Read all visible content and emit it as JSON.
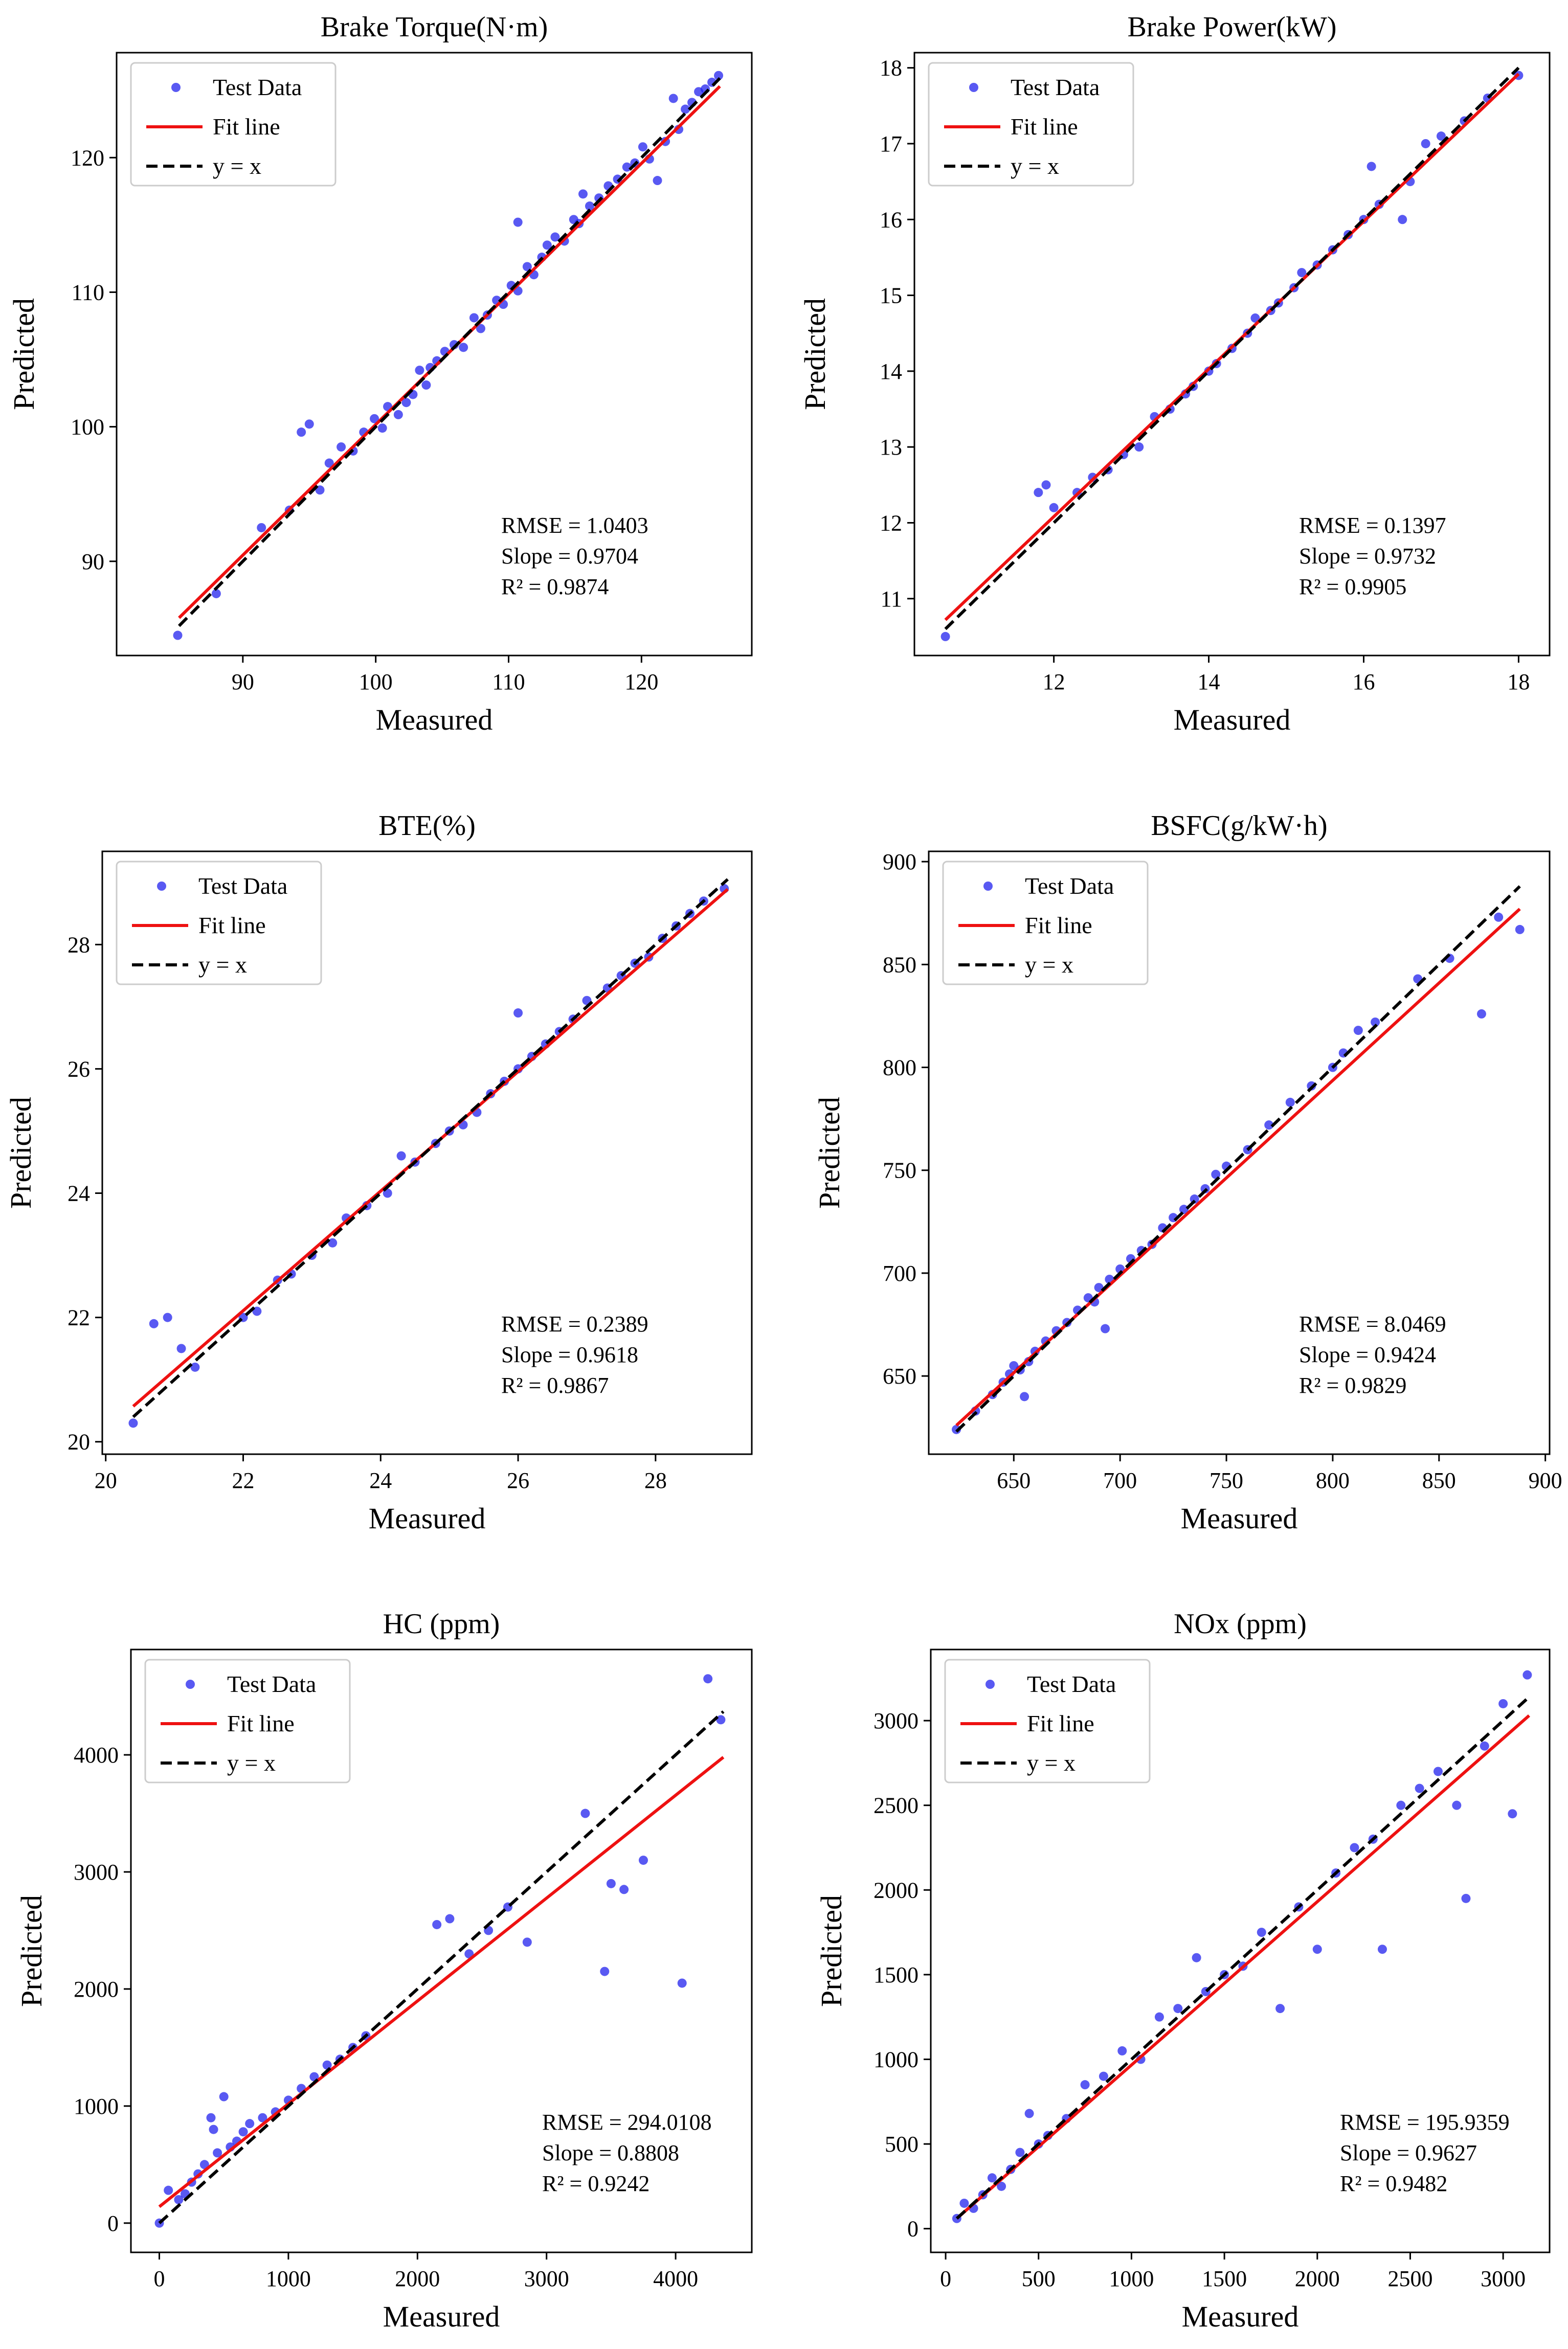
{
  "colors": {
    "test_data": "#2222ee",
    "fit_line": "#ee1111",
    "identity_line": "#000000",
    "axes": "#000000",
    "background": "#ffffff"
  },
  "legend_labels": {
    "test_data": "Test Data",
    "fit_line": "Fit line",
    "identity_line": "y = x"
  },
  "chart_data": [
    {
      "type": "scatter",
      "title": "Brake Torque(N·m)",
      "xlabel": "Measured",
      "ylabel": "Predicted",
      "xlim": [
        80.5,
        128.3
      ],
      "ylim": [
        83,
        127.8
      ],
      "xticks": [
        90,
        100,
        110,
        120
      ],
      "yticks": [
        90,
        100,
        110,
        120
      ],
      "fit_line": {
        "x": [
          85.2,
          125.9
        ],
        "y": [
          85.8,
          125.3
        ]
      },
      "identity_line": {
        "x": [
          85.2,
          125.9
        ],
        "y": [
          85.2,
          125.9
        ]
      },
      "stats": [
        "RMSE = 1.0403",
        "Slope = 0.9704",
        "R² = 0.9874"
      ],
      "legend": [
        "Test Data",
        "Fit line",
        "y = x"
      ],
      "points": [
        [
          85.1,
          84.5
        ],
        [
          88,
          87.6
        ],
        [
          91.4,
          92.5
        ],
        [
          93.5,
          93.8
        ],
        [
          94.4,
          99.6
        ],
        [
          95,
          100.2
        ],
        [
          95.8,
          95.3
        ],
        [
          96.5,
          97.3
        ],
        [
          97.4,
          98.5
        ],
        [
          98.3,
          98.2
        ],
        [
          99.1,
          99.6
        ],
        [
          99.9,
          100.6
        ],
        [
          100.5,
          99.9
        ],
        [
          100.9,
          101.5
        ],
        [
          101.7,
          100.9
        ],
        [
          102.3,
          101.8
        ],
        [
          102.8,
          102.4
        ],
        [
          103.3,
          104.2
        ],
        [
          103.8,
          103.1
        ],
        [
          104.1,
          104.4
        ],
        [
          104.6,
          104.9
        ],
        [
          105.2,
          105.6
        ],
        [
          105.9,
          106.1
        ],
        [
          106.6,
          105.9
        ],
        [
          107.4,
          108.1
        ],
        [
          107.9,
          107.3
        ],
        [
          108.4,
          108.3
        ],
        [
          109.1,
          109.4
        ],
        [
          109.6,
          109.1
        ],
        [
          110.2,
          110.5
        ],
        [
          110.7,
          115.2
        ],
        [
          110.7,
          110.1
        ],
        [
          111.4,
          111.9
        ],
        [
          111.9,
          111.3
        ],
        [
          112.5,
          112.6
        ],
        [
          112.9,
          113.5
        ],
        [
          113.5,
          114.1
        ],
        [
          114.2,
          113.8
        ],
        [
          114.9,
          115.4
        ],
        [
          115.6,
          117.3
        ],
        [
          115.3,
          115.1
        ],
        [
          116.1,
          116.4
        ],
        [
          116.8,
          117
        ],
        [
          117.5,
          117.9
        ],
        [
          118.2,
          118.4
        ],
        [
          118.9,
          119.3
        ],
        [
          119.5,
          119.6
        ],
        [
          120.1,
          120.8
        ],
        [
          120.6,
          119.9
        ],
        [
          121.2,
          118.3
        ],
        [
          121.8,
          121.2
        ],
        [
          122.4,
          124.4
        ],
        [
          122.8,
          122.1
        ],
        [
          123.3,
          123.6
        ],
        [
          123.8,
          124.1
        ],
        [
          124.3,
          124.9
        ],
        [
          124.8,
          125.1
        ],
        [
          125.3,
          125.6
        ],
        [
          125.8,
          126.1
        ]
      ]
    },
    {
      "type": "scatter",
      "title": "Brake Power(kW)",
      "xlabel": "Measured",
      "ylabel": "Predicted",
      "xlim": [
        10.2,
        18.4
      ],
      "ylim": [
        10.25,
        18.2
      ],
      "xticks": [
        12,
        14,
        16,
        18
      ],
      "yticks": [
        11,
        12,
        13,
        14,
        15,
        16,
        17,
        18
      ],
      "fit_line": {
        "x": [
          10.6,
          18
        ],
        "y": [
          10.72,
          17.92
        ]
      },
      "identity_line": {
        "x": [
          10.6,
          18
        ],
        "y": [
          10.6,
          18
        ]
      },
      "stats": [
        "RMSE = 0.1397",
        "Slope = 0.9732",
        "R² = 0.9905"
      ],
      "legend": [
        "Test Data",
        "Fit line",
        "y = x"
      ],
      "points": [
        [
          10.6,
          10.5
        ],
        [
          11.8,
          12.4
        ],
        [
          11.9,
          12.5
        ],
        [
          12,
          12.2
        ],
        [
          12.3,
          12.4
        ],
        [
          12.5,
          12.6
        ],
        [
          12.7,
          12.7
        ],
        [
          12.9,
          12.9
        ],
        [
          13.1,
          13
        ],
        [
          13.3,
          13.4
        ],
        [
          13.5,
          13.5
        ],
        [
          13.7,
          13.7
        ],
        [
          13.8,
          13.8
        ],
        [
          14,
          14
        ],
        [
          14.1,
          14.1
        ],
        [
          14.3,
          14.3
        ],
        [
          14.5,
          14.5
        ],
        [
          14.6,
          14.7
        ],
        [
          14.8,
          14.8
        ],
        [
          14.9,
          14.9
        ],
        [
          15.1,
          15.1
        ],
        [
          15.2,
          15.3
        ],
        [
          15.4,
          15.4
        ],
        [
          15.6,
          15.6
        ],
        [
          15.8,
          15.8
        ],
        [
          16,
          16
        ],
        [
          16.1,
          16.7
        ],
        [
          16.2,
          16.2
        ],
        [
          16.5,
          16
        ],
        [
          16.6,
          16.5
        ],
        [
          16.8,
          17
        ],
        [
          17,
          17.1
        ],
        [
          17.3,
          17.3
        ],
        [
          17.6,
          17.6
        ],
        [
          18,
          17.9
        ]
      ]
    },
    {
      "type": "scatter",
      "title": "BTE(%)",
      "xlabel": "Measured",
      "ylabel": "Predicted",
      "xlim": [
        19.95,
        29.4
      ],
      "ylim": [
        19.8,
        29.5
      ],
      "xticks": [
        20,
        22,
        24,
        26,
        28
      ],
      "yticks": [
        20,
        22,
        24,
        26,
        28
      ],
      "fit_line": {
        "x": [
          20.4,
          29.05
        ],
        "y": [
          20.57,
          28.89
        ]
      },
      "identity_line": {
        "x": [
          20.4,
          29.05
        ],
        "y": [
          20.4,
          29.05
        ]
      },
      "stats": [
        "RMSE = 0.2389",
        "Slope = 0.9618",
        "R² = 0.9867"
      ],
      "legend": [
        "Test Data",
        "Fit line",
        "y = x"
      ],
      "points": [
        [
          20.4,
          20.3
        ],
        [
          20.7,
          21.9
        ],
        [
          20.9,
          22
        ],
        [
          21.1,
          21.5
        ],
        [
          21.3,
          21.2
        ],
        [
          22,
          22
        ],
        [
          22.2,
          22.1
        ],
        [
          22.5,
          22.6
        ],
        [
          22.7,
          22.7
        ],
        [
          23,
          23
        ],
        [
          23.3,
          23.2
        ],
        [
          23.5,
          23.6
        ],
        [
          23.8,
          23.8
        ],
        [
          24.1,
          24
        ],
        [
          24.3,
          24.6
        ],
        [
          24.5,
          24.5
        ],
        [
          24.8,
          24.8
        ],
        [
          25,
          25
        ],
        [
          25.2,
          25.1
        ],
        [
          25.4,
          25.3
        ],
        [
          25.6,
          25.6
        ],
        [
          25.8,
          25.8
        ],
        [
          26,
          26.9
        ],
        [
          26,
          26
        ],
        [
          26.2,
          26.2
        ],
        [
          26.4,
          26.4
        ],
        [
          26.6,
          26.6
        ],
        [
          26.8,
          26.8
        ],
        [
          27,
          27.1
        ],
        [
          27.3,
          27.3
        ],
        [
          27.5,
          27.5
        ],
        [
          27.7,
          27.7
        ],
        [
          27.9,
          27.8
        ],
        [
          28.1,
          28.1
        ],
        [
          28.3,
          28.3
        ],
        [
          28.5,
          28.5
        ],
        [
          28.7,
          28.7
        ],
        [
          29,
          28.9
        ]
      ]
    },
    {
      "type": "scatter",
      "title": "BSFC(g/kW·h)",
      "xlabel": "Measured",
      "ylabel": "Predicted",
      "xlim": [
        610,
        902
      ],
      "ylim": [
        612,
        905
      ],
      "xticks": [
        650,
        700,
        750,
        800,
        850,
        900
      ],
      "yticks": [
        650,
        700,
        750,
        800,
        850,
        900
      ],
      "fit_line": {
        "x": [
          623,
          888
        ],
        "y": [
          626,
          877
        ]
      },
      "identity_line": {
        "x": [
          623,
          888
        ],
        "y": [
          623,
          888
        ]
      },
      "stats": [
        "RMSE = 8.0469",
        "Slope = 0.9424",
        "R² = 0.9829"
      ],
      "legend": [
        "Test Data",
        "Fit line",
        "y = x"
      ],
      "points": [
        [
          623,
          624
        ],
        [
          632,
          633
        ],
        [
          640,
          641
        ],
        [
          645,
          647
        ],
        [
          648,
          651
        ],
        [
          650,
          655
        ],
        [
          653,
          653
        ],
        [
          655,
          640
        ],
        [
          657,
          657
        ],
        [
          660,
          662
        ],
        [
          665,
          667
        ],
        [
          670,
          672
        ],
        [
          675,
          676
        ],
        [
          680,
          682
        ],
        [
          685,
          688
        ],
        [
          688,
          686
        ],
        [
          690,
          693
        ],
        [
          693,
          673
        ],
        [
          695,
          697
        ],
        [
          700,
          702
        ],
        [
          705,
          707
        ],
        [
          710,
          711
        ],
        [
          715,
          714
        ],
        [
          720,
          722
        ],
        [
          725,
          727
        ],
        [
          730,
          731
        ],
        [
          735,
          736
        ],
        [
          740,
          741
        ],
        [
          745,
          748
        ],
        [
          750,
          752
        ],
        [
          760,
          760
        ],
        [
          770,
          772
        ],
        [
          780,
          783
        ],
        [
          790,
          791
        ],
        [
          800,
          800
        ],
        [
          805,
          807
        ],
        [
          812,
          818
        ],
        [
          820,
          822
        ],
        [
          840,
          843
        ],
        [
          855,
          853
        ],
        [
          870,
          826
        ],
        [
          878,
          873
        ],
        [
          888,
          867
        ]
      ]
    },
    {
      "type": "scatter",
      "title": "HC (ppm)",
      "xlabel": "Measured",
      "ylabel": "Predicted",
      "xlim": [
        -220,
        4590
      ],
      "ylim": [
        -250,
        4900
      ],
      "xticks": [
        0,
        1000,
        2000,
        3000,
        4000
      ],
      "yticks": [
        0,
        1000,
        2000,
        3000,
        4000
      ],
      "fit_line": {
        "x": [
          0,
          4370
        ],
        "y": [
          140,
          3980
        ]
      },
      "identity_line": {
        "x": [
          0,
          4370
        ],
        "y": [
          0,
          4370
        ]
      },
      "stats": [
        "RMSE = 294.0108",
        "Slope = 0.8808",
        "R² = 0.9242"
      ],
      "legend": [
        "Test Data",
        "Fit line",
        "y = x"
      ],
      "points": [
        [
          0,
          0
        ],
        [
          70,
          280
        ],
        [
          150,
          200
        ],
        [
          200,
          250
        ],
        [
          250,
          350
        ],
        [
          300,
          420
        ],
        [
          350,
          500
        ],
        [
          400,
          900
        ],
        [
          420,
          800
        ],
        [
          450,
          600
        ],
        [
          500,
          1080
        ],
        [
          550,
          650
        ],
        [
          600,
          700
        ],
        [
          650,
          780
        ],
        [
          700,
          850
        ],
        [
          800,
          900
        ],
        [
          900,
          950
        ],
        [
          1000,
          1050
        ],
        [
          1100,
          1150
        ],
        [
          1200,
          1250
        ],
        [
          1300,
          1350
        ],
        [
          1400,
          1400
        ],
        [
          1500,
          1500
        ],
        [
          1600,
          1600
        ],
        [
          2150,
          2550
        ],
        [
          2250,
          2600
        ],
        [
          2400,
          2300
        ],
        [
          2550,
          2500
        ],
        [
          2700,
          2700
        ],
        [
          2850,
          2400
        ],
        [
          3300,
          3500
        ],
        [
          3450,
          2150
        ],
        [
          3500,
          2900
        ],
        [
          3600,
          2850
        ],
        [
          3750,
          3100
        ],
        [
          4050,
          2050
        ],
        [
          4250,
          4650
        ],
        [
          4350,
          4300
        ]
      ]
    },
    {
      "type": "scatter",
      "title": "NOx (ppm)",
      "xlabel": "Measured",
      "ylabel": "Predicted",
      "xlim": [
        -80,
        3250
      ],
      "ylim": [
        -140,
        3420
      ],
      "xticks": [
        0,
        500,
        1000,
        1500,
        2000,
        2500,
        3000
      ],
      "yticks": [
        0,
        500,
        1000,
        1500,
        2000,
        2500,
        3000
      ],
      "fit_line": {
        "x": [
          60,
          3140
        ],
        "y": [
          60,
          3030
        ]
      },
      "identity_line": {
        "x": [
          60,
          3140
        ],
        "y": [
          60,
          3140
        ]
      },
      "stats": [
        "RMSE = 195.9359",
        "Slope = 0.9627",
        "R² = 0.9482"
      ],
      "legend": [
        "Test Data",
        "Fit line",
        "y = x"
      ],
      "points": [
        [
          60,
          60
        ],
        [
          100,
          150
        ],
        [
          150,
          120
        ],
        [
          200,
          200
        ],
        [
          250,
          300
        ],
        [
          300,
          250
        ],
        [
          350,
          350
        ],
        [
          400,
          450
        ],
        [
          450,
          680
        ],
        [
          500,
          500
        ],
        [
          550,
          550
        ],
        [
          650,
          650
        ],
        [
          750,
          850
        ],
        [
          850,
          900
        ],
        [
          950,
          1050
        ],
        [
          1050,
          1000
        ],
        [
          1150,
          1250
        ],
        [
          1250,
          1300
        ],
        [
          1350,
          1600
        ],
        [
          1400,
          1400
        ],
        [
          1500,
          1500
        ],
        [
          1600,
          1550
        ],
        [
          1700,
          1750
        ],
        [
          1800,
          1300
        ],
        [
          1900,
          1900
        ],
        [
          2000,
          1650
        ],
        [
          2100,
          2100
        ],
        [
          2200,
          2250
        ],
        [
          2300,
          2300
        ],
        [
          2350,
          1650
        ],
        [
          2450,
          2500
        ],
        [
          2550,
          2600
        ],
        [
          2650,
          2700
        ],
        [
          2750,
          2500
        ],
        [
          2800,
          1950
        ],
        [
          2900,
          2850
        ],
        [
          3000,
          3100
        ],
        [
          3050,
          2450
        ],
        [
          3130,
          3270
        ]
      ]
    }
  ]
}
